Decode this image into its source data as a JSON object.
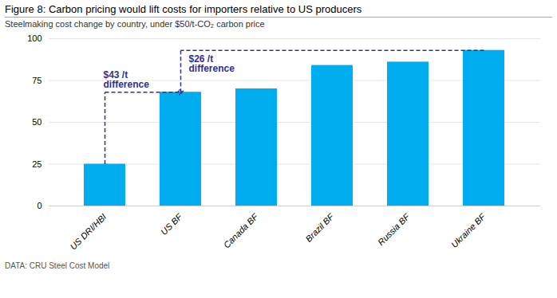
{
  "chart_data": {
    "type": "bar",
    "title": "Figure 8: Carbon pricing would lift costs for importers relative to US producers",
    "subtitle": "Steelmaking cost change by country, under $50/t-CO₂ carbon price",
    "categories": [
      "US DRI/HBI",
      "US BF",
      "Canada BF",
      "Brazil BF",
      "Russia BF",
      "Ukraine BF"
    ],
    "values": [
      25,
      68,
      70,
      84,
      86,
      93
    ],
    "color": "#00AEEF",
    "ylim": [
      0,
      100
    ],
    "yticks": [
      0,
      25,
      50,
      75,
      100
    ],
    "grid": true,
    "annotations": [
      {
        "text": "$43 /t\ndifference",
        "from": "US DRI/HBI",
        "to": "US BF",
        "color": "#2e3192"
      },
      {
        "text": "$26 /t\ndifference",
        "from": "US BF",
        "to": "Ukraine BF",
        "color": "#2e3192"
      }
    ],
    "footer": "DATA: CRU Steel Cost Model"
  }
}
